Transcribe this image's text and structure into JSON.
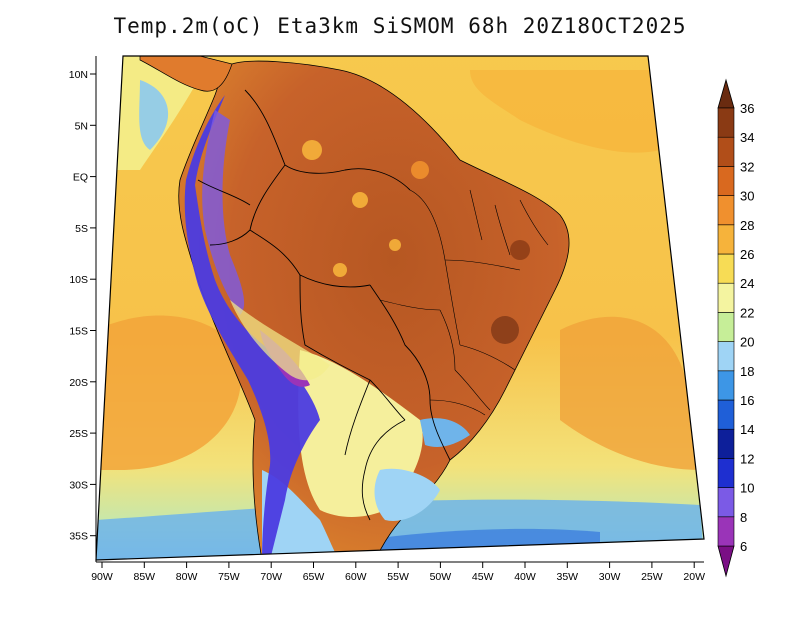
{
  "title": "Temp.2m(oC) Eta3km SiSMOM 68h 20Z18OCT2025",
  "map": {
    "lat_ticks": [
      "10N",
      "5N",
      "EQ",
      "5S",
      "10S",
      "15S",
      "20S",
      "25S",
      "30S",
      "35S"
    ],
    "lon_ticks": [
      "90W",
      "85W",
      "80W",
      "75W",
      "70W",
      "65W",
      "60W",
      "55W",
      "50W",
      "45W",
      "40W",
      "35W",
      "30W",
      "25W",
      "20W"
    ],
    "lat_range": [
      12,
      -38
    ],
    "lon_range": [
      -90,
      -20
    ]
  },
  "colorbar": {
    "labels": [
      "6",
      "8",
      "10",
      "12",
      "14",
      "16",
      "18",
      "20",
      "22",
      "24",
      "26",
      "28",
      "30",
      "32",
      "34",
      "36"
    ],
    "colors": [
      "#7a0f85",
      "#9a34b8",
      "#7b5ae6",
      "#1e2fd0",
      "#0d1f9a",
      "#1f5fd8",
      "#3d96e6",
      "#9fd4f5",
      "#c6ee98",
      "#f4f4a0",
      "#f7dc55",
      "#f6b33b",
      "#f0902e",
      "#d9691f",
      "#b14e19",
      "#8a3a14",
      "#6a2b10"
    ]
  },
  "colors": {
    "ocean_warm": "#f7c94d",
    "ocean_hot": "#f2a037",
    "ocean_mild": "#f3ee8c",
    "ocean_cool": "#a5d8f2",
    "land_hot": "#d46a24",
    "land_hotter": "#b65722",
    "andes_cold": "#3b2fd6",
    "pampa_mild": "#f5ef9c"
  }
}
